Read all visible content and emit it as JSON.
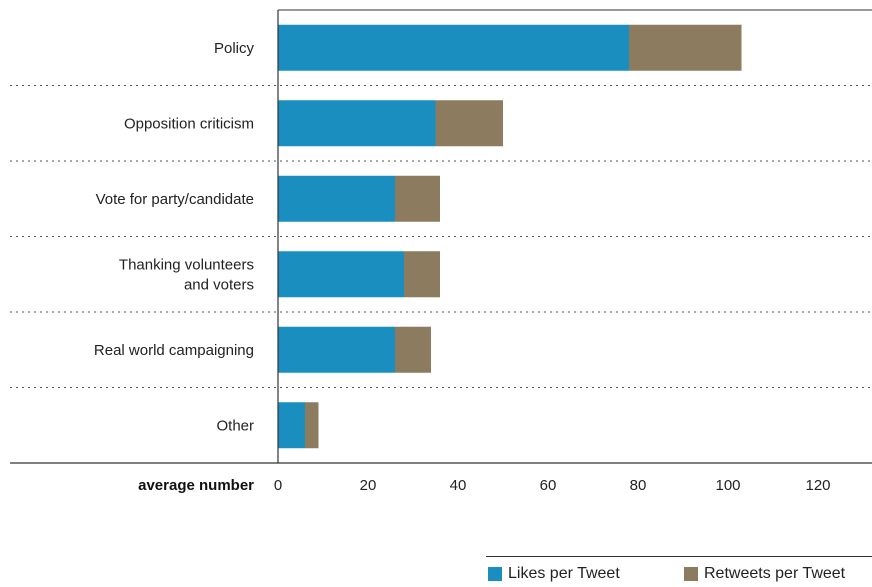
{
  "chart_data": {
    "type": "bar",
    "orientation": "horizontal",
    "stacked": true,
    "categories": [
      [
        "Policy"
      ],
      [
        "Opposition criticism"
      ],
      [
        "Vote for party/candidate"
      ],
      [
        "Thanking volunteers",
        "and voters"
      ],
      [
        "Real world campaigning"
      ],
      [
        "Other"
      ]
    ],
    "series": [
      {
        "name": "Likes per Tweet",
        "color": "#1a8fbf",
        "values": [
          78,
          35,
          26,
          28,
          26,
          6
        ]
      },
      {
        "name": "Retweets per Tweet",
        "color": "#8c7b5e",
        "values": [
          25,
          15,
          10,
          8,
          8,
          3
        ]
      }
    ],
    "xlabel": "average number",
    "xlim": [
      0,
      120
    ],
    "xticks": [
      "0",
      "20",
      "40",
      "60",
      "80",
      "100",
      "120"
    ],
    "legend_position": "bottom-right",
    "grid": false
  },
  "legend": {
    "likes_label": "Likes per Tweet",
    "retweets_label": "Retweets per Tweet"
  }
}
